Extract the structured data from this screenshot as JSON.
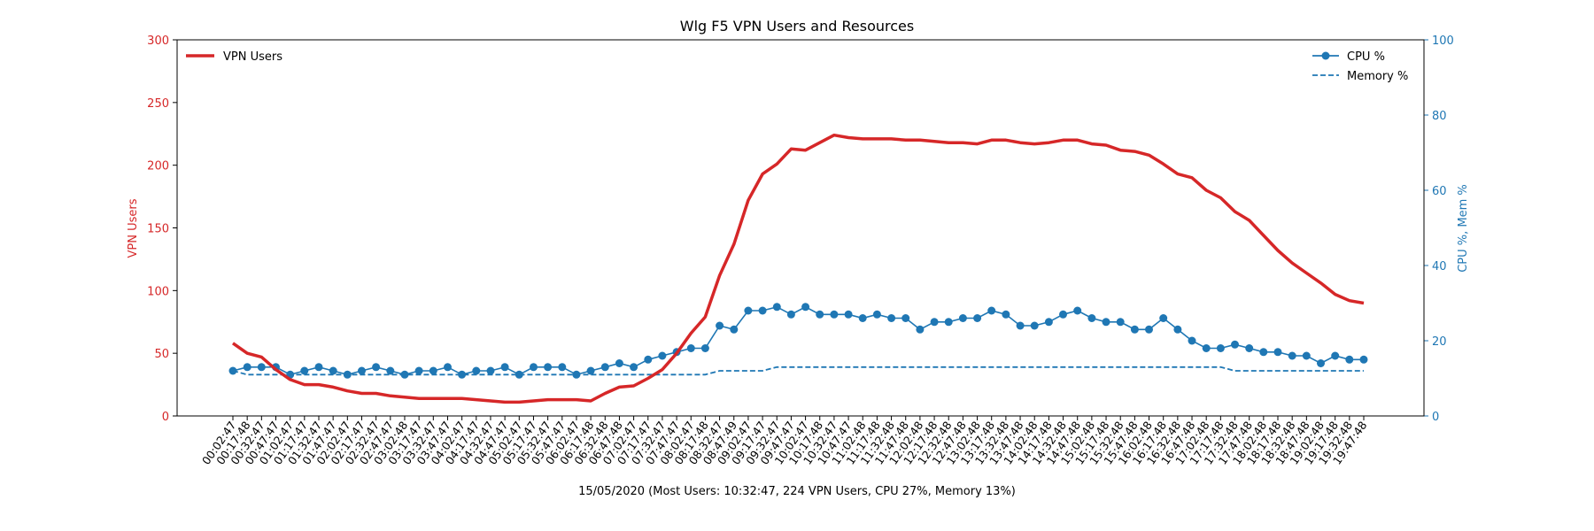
{
  "chart_data": {
    "type": "line",
    "title": "Wlg F5 VPN Users and Resources",
    "xlabel": "15/05/2020 (Most Users: 10:32:47, 224 VPN Users, CPU 27%, Memory 13%)",
    "ylabel_left": "VPN Users",
    "ylabel_right": "CPU %, Mem %",
    "ylim_left": [
      0,
      300
    ],
    "ylim_right": [
      0,
      100
    ],
    "yticks_left": [
      0,
      50,
      100,
      150,
      200,
      250,
      300
    ],
    "yticks_right": [
      0,
      20,
      40,
      60,
      80,
      100
    ],
    "grid": false,
    "legend_left_position": "upper-left",
    "legend_right_position": "upper-right",
    "colors": {
      "vpn": "#d62728",
      "cpu": "#1f77b4",
      "mem": "#1f77b4",
      "left_axis": "#d62728",
      "right_axis": "#1f77b4"
    },
    "categories": [
      "00:02:47",
      "00:17:48",
      "00:32:47",
      "00:47:47",
      "01:02:47",
      "01:17:47",
      "01:32:47",
      "01:47:47",
      "02:02:47",
      "02:17:47",
      "02:32:47",
      "02:47:47",
      "03:02:48",
      "03:17:47",
      "03:32:47",
      "03:47:47",
      "04:02:47",
      "04:17:47",
      "04:32:47",
      "04:47:47",
      "05:02:47",
      "05:17:47",
      "05:32:47",
      "05:47:47",
      "06:02:47",
      "06:17:48",
      "06:32:48",
      "06:47:48",
      "07:02:47",
      "07:17:47",
      "07:32:47",
      "07:47:47",
      "08:02:47",
      "08:17:48",
      "08:32:47",
      "08:47:49",
      "09:02:47",
      "09:17:47",
      "09:32:47",
      "09:47:47",
      "10:02:47",
      "10:17:48",
      "10:32:47",
      "10:47:47",
      "11:02:48",
      "11:17:48",
      "11:32:48",
      "11:47:48",
      "12:02:48",
      "12:17:48",
      "12:32:48",
      "12:47:48",
      "13:02:48",
      "13:17:48",
      "13:32:48",
      "13:47:48",
      "14:02:48",
      "14:17:48",
      "14:32:48",
      "14:47:48",
      "15:02:48",
      "15:17:48",
      "15:32:48",
      "15:47:48",
      "16:02:48",
      "16:17:48",
      "16:32:48",
      "16:47:48",
      "17:02:48",
      "17:17:48",
      "17:32:48",
      "17:47:48",
      "18:02:48",
      "18:17:48",
      "18:32:48",
      "18:47:48",
      "19:02:48",
      "19:17:48",
      "19:32:48",
      "19:47:48"
    ],
    "series": [
      {
        "name": "VPN Users",
        "axis": "left",
        "style": "solid-thick",
        "values": [
          58,
          50,
          47,
          37,
          29,
          25,
          25,
          23,
          20,
          18,
          18,
          16,
          15,
          14,
          14,
          14,
          14,
          13,
          12,
          11,
          11,
          12,
          13,
          13,
          13,
          12,
          18,
          23,
          24,
          30,
          37,
          50,
          66,
          79,
          112,
          137,
          172,
          193,
          201,
          213,
          212,
          218,
          224,
          222,
          221,
          221,
          221,
          220,
          220,
          219,
          218,
          218,
          217,
          220,
          220,
          218,
          217,
          218,
          220,
          220,
          217,
          216,
          212,
          211,
          208,
          201,
          193,
          190,
          180,
          174,
          163,
          156,
          144,
          132,
          122,
          114,
          106,
          97,
          92,
          90
        ]
      },
      {
        "name": "CPU %",
        "axis": "right",
        "style": "line-dot-markers",
        "values": [
          12,
          13,
          13,
          13,
          11,
          12,
          13,
          12,
          11,
          12,
          13,
          12,
          11,
          12,
          12,
          13,
          11,
          12,
          12,
          13,
          11,
          13,
          13,
          13,
          11,
          12,
          13,
          14,
          13,
          15,
          16,
          17,
          18,
          18,
          24,
          23,
          28,
          28,
          29,
          27,
          29,
          27,
          27,
          27,
          26,
          27,
          26,
          26,
          23,
          25,
          25,
          26,
          26,
          28,
          27,
          24,
          24,
          25,
          27,
          28,
          26,
          25,
          25,
          23,
          23,
          26,
          23,
          20,
          18,
          18,
          19,
          18,
          17,
          17,
          16,
          16,
          14,
          16,
          15,
          15
        ]
      },
      {
        "name": "Memory %",
        "axis": "right",
        "style": "dashed",
        "values": [
          12,
          11,
          11,
          11,
          11,
          11,
          11,
          11,
          11,
          11,
          11,
          11,
          11,
          11,
          11,
          11,
          11,
          11,
          11,
          11,
          11,
          11,
          11,
          11,
          11,
          11,
          11,
          11,
          11,
          11,
          11,
          11,
          11,
          11,
          12,
          12,
          12,
          12,
          13,
          13,
          13,
          13,
          13,
          13,
          13,
          13,
          13,
          13,
          13,
          13,
          13,
          13,
          13,
          13,
          13,
          13,
          13,
          13,
          13,
          13,
          13,
          13,
          13,
          13,
          13,
          13,
          13,
          13,
          13,
          13,
          12,
          12,
          12,
          12,
          12,
          12,
          12,
          12,
          12,
          12
        ]
      }
    ]
  }
}
